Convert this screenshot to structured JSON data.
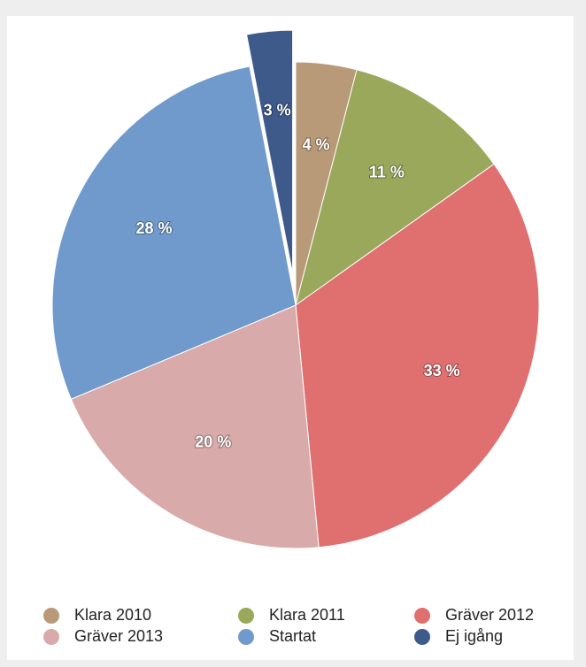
{
  "chart_data": {
    "type": "pie",
    "categories": [
      "Klara 2010",
      "Klara 2011",
      "Gräver 2012",
      "Gräver 2013",
      "Startat",
      "Ej igång"
    ],
    "values": [
      4,
      11,
      33,
      20,
      28,
      3
    ],
    "value_labels": [
      "4 %",
      "11 %",
      "33 %",
      "20 %",
      "28 %",
      "3 %"
    ],
    "colors": [
      "#b89a78",
      "#9aa85c",
      "#e07070",
      "#d8aaaa",
      "#6f9acb",
      "#3d5a8a"
    ],
    "exploded": [
      false,
      false,
      false,
      false,
      false,
      true
    ],
    "legend": "bottom"
  }
}
